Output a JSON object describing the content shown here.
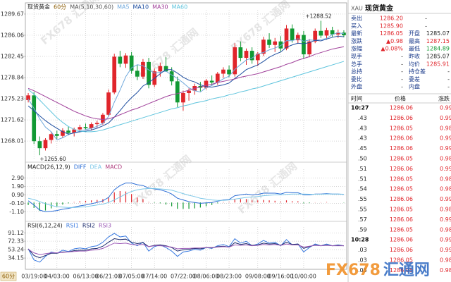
{
  "chart_data": [
    {
      "type": "candlestick",
      "title": "现货黄金",
      "period": "60分",
      "indicator": "MA(5,10,30,60)",
      "categories": [
        null,
        "03/19:00",
        null,
        null,
        null,
        "04/03:00",
        null,
        null,
        null,
        null,
        "06/13:00",
        null,
        null,
        null,
        "06/21:00",
        null,
        null,
        null,
        "07/05:00",
        null,
        null,
        null,
        "07/14:00",
        null,
        null,
        null,
        null,
        "07/22:00",
        null,
        null,
        null,
        "08/06:00",
        null,
        null,
        null,
        "08/23:00",
        null,
        null,
        null,
        null,
        "09/08:00",
        null,
        null,
        null,
        "09/16:00",
        null,
        null,
        null,
        "10/00:00",
        null,
        null,
        null,
        null,
        null,
        null,
        null
      ],
      "open": [
        1275.0,
        1275.8,
        1268.0,
        1266.8,
        1268.2,
        1269.2,
        1268.9,
        1269.8,
        1269.4,
        1270.0,
        1270.4,
        1270.2,
        1270.9,
        1271.1,
        1272.5,
        1276.3,
        1282.4,
        1281.2,
        1282.6,
        1280.0,
        1279.0,
        1281.5,
        1277.6,
        1279.9,
        1280.8,
        1279.9,
        1278.2,
        1274.6,
        1276.2,
        1276.6,
        1277.4,
        1277.1,
        1278.3,
        1278.0,
        1279.5,
        1280.2,
        1279.4,
        1284.0,
        1282.2,
        1283.4,
        1281.8,
        1282.9,
        1285.3,
        1284.4,
        1285.0,
        1283.8,
        1287.2,
        1285.2,
        1286.1,
        1282.8,
        1285.0,
        1286.8,
        1286.0,
        1286.9,
        1286.2,
        1286.5
      ],
      "high": [
        1276.2,
        1276.4,
        1268.8,
        1268.5,
        1269.5,
        1269.8,
        1270.2,
        1270.5,
        1270.3,
        1270.8,
        1271.0,
        1271.2,
        1271.5,
        1272.8,
        1276.8,
        1282.9,
        1283.4,
        1283.0,
        1283.2,
        1281.0,
        1282.0,
        1282.2,
        1280.4,
        1281.4,
        1282.3,
        1280.6,
        1279.0,
        1276.6,
        1277.0,
        1277.8,
        1278.1,
        1278.6,
        1279.2,
        1279.8,
        1280.6,
        1280.9,
        1284.7,
        1285.0,
        1283.8,
        1284.0,
        1283.2,
        1285.8,
        1286.4,
        1285.6,
        1285.9,
        1287.8,
        1287.9,
        1286.5,
        1286.8,
        1285.4,
        1287.2,
        1288.52,
        1287.3,
        1287.5,
        1287.0,
        1286.9
      ],
      "low": [
        1274.6,
        1267.5,
        1265.6,
        1266.4,
        1267.6,
        1268.4,
        1268.5,
        1269.0,
        1268.8,
        1269.5,
        1269.9,
        1269.8,
        1270.3,
        1270.8,
        1272.2,
        1276.0,
        1280.6,
        1280.5,
        1279.5,
        1278.4,
        1278.6,
        1277.0,
        1277.2,
        1279.0,
        1279.8,
        1277.5,
        1273.8,
        1273.2,
        1274.9,
        1275.9,
        1276.5,
        1276.8,
        1277.5,
        1277.6,
        1278.8,
        1278.9,
        1279.0,
        1281.6,
        1281.0,
        1281.2,
        1280.8,
        1282.5,
        1283.9,
        1283.2,
        1283.3,
        1283.5,
        1284.8,
        1284.6,
        1282.0,
        1282.3,
        1284.7,
        1285.6,
        1285.3,
        1285.8,
        1285.6,
        1285.7
      ],
      "close": [
        1275.8,
        1268.0,
        1266.8,
        1268.2,
        1269.2,
        1268.9,
        1269.8,
        1269.4,
        1270.0,
        1270.4,
        1270.2,
        1270.9,
        1271.1,
        1272.5,
        1276.3,
        1282.4,
        1281.2,
        1282.6,
        1280.0,
        1279.0,
        1281.5,
        1277.6,
        1279.9,
        1280.8,
        1279.9,
        1278.2,
        1274.6,
        1276.2,
        1276.6,
        1277.4,
        1277.1,
        1278.3,
        1278.0,
        1279.5,
        1280.2,
        1279.4,
        1284.0,
        1282.2,
        1283.4,
        1281.8,
        1282.9,
        1285.3,
        1284.4,
        1285.0,
        1283.8,
        1287.2,
        1285.2,
        1286.1,
        1282.8,
        1285.0,
        1286.8,
        1286.0,
        1286.9,
        1286.2,
        1286.5,
        1286.05
      ],
      "up_color": "#e0252b",
      "down_color": "#119933",
      "series": [
        {
          "name": "MA5",
          "color": "#6fa8dc",
          "values": [
            1275.2,
            1273.6,
            1271.8,
            1270.4,
            1269.6,
            1268.22,
            1268.58,
            1269.1,
            1269.46,
            1269.7,
            1269.96,
            1270.18,
            1270.52,
            1271.02,
            1272.2,
            1274.64,
            1276.7,
            1279.0,
            1280.5,
            1281.04,
            1280.86,
            1280.14,
            1279.6,
            1279.76,
            1279.94,
            1279.28,
            1278.68,
            1277.94,
            1277.1,
            1276.6,
            1276.38,
            1277.12,
            1277.48,
            1278.06,
            1278.62,
            1279.08,
            1280.22,
            1281.06,
            1281.84,
            1282.16,
            1282.86,
            1283.12,
            1283.56,
            1283.88,
            1284.28,
            1285.14,
            1285.12,
            1285.46,
            1285.02,
            1285.26,
            1285.18,
            1285.34,
            1285.5,
            1286.18,
            1286.48,
            1286.33
          ]
        },
        {
          "name": "MA10",
          "color": "#1f4fa0",
          "values": [
            1274.0,
            1273.2,
            1272.3,
            1271.5,
            1270.8,
            1270.2,
            1269.6,
            1269.2,
            1269.4,
            1269.6,
            1269.7,
            1269.9,
            1270.2,
            1270.6,
            1271.1,
            1272.1,
            1273.2,
            1274.4,
            1275.4,
            1276.3,
            1277.4,
            1278.0,
            1278.7,
            1279.5,
            1280.2,
            1280.2,
            1279.6,
            1278.9,
            1278.4,
            1278.1,
            1277.6,
            1277.3,
            1277.2,
            1277.4,
            1277.6,
            1277.9,
            1278.7,
            1279.4,
            1280.2,
            1280.6,
            1281.0,
            1281.6,
            1282.3,
            1282.8,
            1283.2,
            1284.0,
            1284.4,
            1284.7,
            1284.6,
            1284.8,
            1285.2,
            1285.1,
            1285.4,
            1285.7,
            1285.9,
            1285.8
          ]
        },
        {
          "name": "MA30",
          "color": "#a0409a",
          "values": [
            1277.0,
            1276.6,
            1276.1,
            1275.6,
            1275.1,
            1274.6,
            1274.1,
            1273.6,
            1273.1,
            1272.7,
            1272.3,
            1272.0,
            1271.8,
            1271.7,
            1271.8,
            1272.1,
            1272.5,
            1272.9,
            1273.3,
            1273.6,
            1274.0,
            1274.4,
            1274.8,
            1275.2,
            1275.6,
            1275.9,
            1276.1,
            1276.4,
            1276.7,
            1277.0,
            1277.2,
            1277.5,
            1277.7,
            1278.0,
            1278.2,
            1278.4,
            1278.6,
            1278.9,
            1279.1,
            1279.3,
            1279.5,
            1279.8,
            1280.1,
            1280.4,
            1280.7,
            1281.1,
            1281.4,
            1281.8,
            1282.1,
            1282.4,
            1282.8,
            1283.1,
            1283.4,
            1283.7,
            1283.9,
            1284.1
          ]
        },
        {
          "name": "MA60",
          "color": "#5ec4dd",
          "values": [
            1276.8,
            1276.0,
            1275.0,
            1274.0,
            1273.0,
            1272.0,
            1271.2,
            1270.5,
            1270.0,
            1269.7,
            1269.6,
            1269.6,
            1269.7,
            1269.9,
            1270.2,
            1270.5,
            1270.8,
            1271.1,
            1271.4,
            1271.7,
            1272.0,
            1272.3,
            1272.6,
            1272.9,
            1273.2,
            1273.5,
            1273.7,
            1274.0,
            1274.2,
            1274.5,
            1274.7,
            1274.9,
            1275.2,
            1275.4,
            1275.6,
            1275.9,
            1276.1,
            1276.4,
            1276.6,
            1276.9,
            1277.1,
            1277.4,
            1277.7,
            1278.0,
            1278.3,
            1278.6,
            1278.9,
            1279.2,
            1279.5,
            1279.8,
            1280.1,
            1280.4,
            1280.7,
            1281.0,
            1281.3,
            1281.6
          ]
        }
      ],
      "annotations": [
        {
          "text": "+1288.52",
          "value": 1288.52,
          "at": "high"
        },
        {
          "text": "+1265.60",
          "value": 1265.6,
          "at": "low"
        }
      ],
      "ylim": [
        1264.9,
        1289.9
      ],
      "yticks": [
        1268.01,
        1271.62,
        1275.23,
        1278.84,
        1282.45,
        1286.06,
        1289.67
      ],
      "grid": true
    },
    {
      "type": "macd",
      "title": "MACD(26,12,9)",
      "up_color": "#e0252b",
      "down_color": "#119933",
      "series": [
        {
          "name": "DIFF",
          "color": "#2e6fd6",
          "style": "line",
          "values": [
            0.2,
            -0.3,
            -0.9,
            -1.1,
            -1.05,
            -0.95,
            -0.8,
            -0.7,
            -0.55,
            -0.4,
            -0.3,
            -0.15,
            0.0,
            0.2,
            0.6,
            1.5,
            2.0,
            2.3,
            2.3,
            2.1,
            2.0,
            1.7,
            1.6,
            1.5,
            1.3,
            1.0,
            0.5,
            0.3,
            0.1,
            0.0,
            -0.1,
            -0.05,
            0.0,
            0.15,
            0.3,
            0.35,
            0.8,
            0.9,
            1.0,
            0.9,
            0.95,
            1.1,
            1.1,
            1.1,
            1.0,
            1.2,
            1.15,
            1.15,
            0.9,
            0.9,
            1.0,
            1.0,
            1.05,
            1.0,
            1.0,
            0.95
          ]
        },
        {
          "name": "DEA",
          "color": "#7ec8e8",
          "style": "line",
          "values": [
            0.5,
            0.35,
            0.1,
            -0.15,
            -0.35,
            -0.5,
            -0.55,
            -0.6,
            -0.6,
            -0.55,
            -0.5,
            -0.4,
            -0.3,
            -0.2,
            0.0,
            0.3,
            0.65,
            1.0,
            1.3,
            1.5,
            1.6,
            1.65,
            1.65,
            1.6,
            1.55,
            1.45,
            1.25,
            1.05,
            0.85,
            0.7,
            0.5,
            0.4,
            0.3,
            0.25,
            0.25,
            0.3,
            0.4,
            0.5,
            0.6,
            0.65,
            0.7,
            0.8,
            0.85,
            0.9,
            0.9,
            0.95,
            1.0,
            1.0,
            1.0,
            0.98,
            0.98,
            0.98,
            1.0,
            1.0,
            1.0,
            0.98
          ]
        },
        {
          "name": "MACD",
          "color": "#b04080",
          "style": "bar",
          "values": [
            -0.3,
            -0.65,
            -1.0,
            -0.95,
            -0.7,
            -0.45,
            -0.25,
            -0.1,
            0.05,
            0.15,
            0.2,
            0.25,
            0.3,
            0.4,
            0.6,
            1.2,
            1.35,
            1.3,
            1.0,
            0.6,
            0.4,
            0.05,
            -0.05,
            -0.1,
            -0.25,
            -0.45,
            -0.75,
            -0.75,
            -0.75,
            -0.7,
            -0.6,
            -0.45,
            -0.3,
            -0.1,
            0.05,
            0.05,
            0.4,
            0.4,
            0.4,
            0.25,
            0.25,
            0.3,
            0.25,
            0.2,
            0.1,
            0.25,
            0.15,
            0.15,
            -0.1,
            -0.08,
            0.02,
            0.02,
            0.05,
            0.0,
            0.0,
            -0.03
          ]
        }
      ],
      "ylim": [
        -1.9,
        3.6
      ],
      "yticks": [
        {
          "value": -1.1,
          "label": "-1.10"
        },
        {
          "value": -0.1,
          "label": "-0.10"
        },
        {
          "value": 0.9,
          "label": "0.90"
        },
        {
          "value": 1.9,
          "label": "1.90"
        },
        {
          "value": 2.9,
          "label": "2.90"
        }
      ],
      "grid": true
    },
    {
      "type": "line",
      "title": "RSI(6,12,24)",
      "series": [
        {
          "name": "RSI1",
          "color": "#3b7be0",
          "values": [
            55,
            30,
            25,
            38,
            48,
            45,
            52,
            49,
            55,
            57,
            55,
            60,
            62,
            70,
            82,
            90,
            82,
            84,
            68,
            62,
            70,
            50,
            60,
            64,
            58,
            50,
            38,
            48,
            50,
            54,
            52,
            58,
            56,
            62,
            65,
            60,
            78,
            68,
            72,
            62,
            66,
            74,
            68,
            70,
            62,
            76,
            64,
            66,
            48,
            58,
            66,
            62,
            66,
            62,
            64,
            62
          ]
        },
        {
          "name": "RSI2",
          "color": "#1a2a6c",
          "values": [
            55,
            40,
            35,
            40,
            45,
            45,
            48,
            48,
            51,
            52,
            52,
            55,
            56,
            61,
            70,
            78,
            76,
            77,
            70,
            67,
            69,
            60,
            63,
            64,
            62,
            58,
            50,
            53,
            54,
            56,
            55,
            58,
            57,
            60,
            61,
            59,
            69,
            65,
            67,
            63,
            64,
            68,
            66,
            67,
            63,
            70,
            65,
            66,
            56,
            60,
            64,
            62,
            64,
            62,
            63,
            62
          ]
        },
        {
          "name": "RSI3",
          "color": "#9b59b6",
          "values": [
            54,
            46,
            42,
            44,
            46,
            46,
            47,
            48,
            49,
            50,
            50,
            52,
            53,
            56,
            62,
            68,
            67,
            68,
            65,
            64,
            65,
            60,
            62,
            62,
            61,
            59,
            55,
            56,
            56,
            57,
            57,
            58,
            58,
            59,
            60,
            59,
            64,
            63,
            64,
            62,
            63,
            65,
            64,
            65,
            63,
            66,
            64,
            64,
            59,
            61,
            63,
            62,
            63,
            62,
            62,
            62
          ]
        }
      ],
      "ylim": [
        12,
        98
      ],
      "yticks": [
        34.15,
        53.24,
        72.33,
        91.12
      ],
      "grid": true
    }
  ],
  "quote": {
    "code": "XAU",
    "name": "现货黄金",
    "rows": [
      {
        "label": "卖出",
        "value": "1286.20",
        "value2": "-"
      },
      {
        "label": "买入",
        "value": "1285.90",
        "value2": "-"
      },
      {
        "label": "最新",
        "value": "1286.05",
        "label2": "开盘",
        "value2": "1285.07"
      },
      {
        "label": "涨跌",
        "value": "▲0.98",
        "label2": "最高",
        "value2": "1287.15"
      },
      {
        "label": "涨幅",
        "value": "▲0.08%",
        "label2": "最低",
        "value2": "1284.89"
      },
      {
        "label": "现手",
        "value": "-",
        "label2": "昨收",
        "value2": "1285.07"
      },
      {
        "label": "总手",
        "value": "-",
        "label2": "均价",
        "value2": "1285.91"
      },
      {
        "label": "总持",
        "value": "-",
        "label2": "持仓差",
        "value2": "-"
      },
      {
        "label": "委比",
        "value": "-",
        "label2": "委差",
        "value2": "-"
      },
      {
        "label": "外盘",
        "value": "-",
        "label2": "内盘",
        "value2": "-"
      }
    ]
  },
  "ticks": {
    "header": [
      "时间",
      "价格",
      "涨跌"
    ],
    "rows": [
      [
        "10:27",
        "1286.06",
        "0.99"
      ],
      [
        ".43",
        "1286.06",
        "0.99"
      ],
      [
        ".43",
        "1286.05",
        "0.98"
      ],
      [
        ".43",
        "1286.06",
        "0.99"
      ],
      [
        ".45",
        "1286.06",
        "0.99"
      ],
      [
        ".50",
        "1286.05",
        "0.98"
      ],
      [
        ".51",
        "1286.06",
        "0.99"
      ],
      [
        ".51",
        "1286.05",
        "0.98"
      ],
      [
        ".54",
        "1286.05",
        "0.98"
      ],
      [
        ".55",
        "1286.06",
        "0.99"
      ],
      [
        ".55",
        "1286.05",
        "0.98"
      ],
      [
        ".57",
        "1286.06",
        "0.99"
      ],
      [
        ".59",
        "1286.05",
        "0.98"
      ],
      [
        "10:28",
        "1286.06",
        "0.99"
      ],
      [
        ".03",
        "1286.06",
        "0.99"
      ],
      [
        ".03",
        "1286.05",
        "0.98"
      ],
      [
        ".05",
        "1286.05",
        "0.98"
      ]
    ]
  },
  "watermark": {
    "brand": "FX678",
    "name": "汇通网"
  }
}
